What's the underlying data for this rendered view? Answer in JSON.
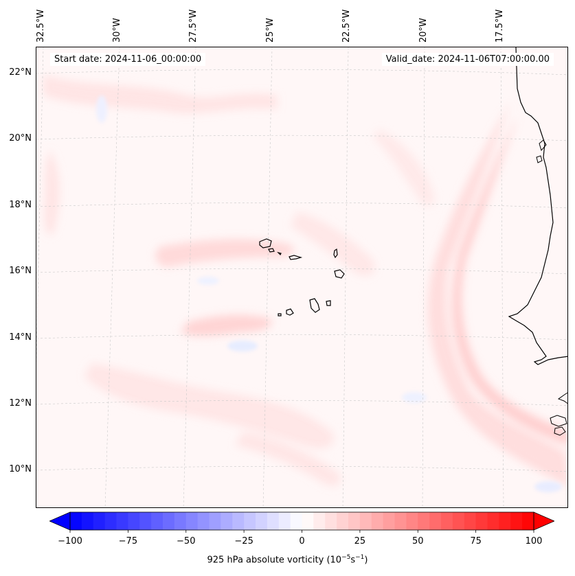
{
  "map": {
    "longitude_labels": [
      "32.5°W",
      "30°W",
      "27.5°W",
      "25°W",
      "22.5°W",
      "20°W",
      "17.5°W"
    ],
    "latitude_labels": [
      "22°N",
      "20°N",
      "18°N",
      "16°N",
      "14°N",
      "12°N",
      "10°N"
    ],
    "start_date": "Start date: 2024-11-06_00:00:00",
    "valid_date": "Valid_date: 2024-11-06T07:00:00.00",
    "background_color": "#fff7f7",
    "land_outline_color": "#000000"
  },
  "colorbar": {
    "ticks": [
      "−100",
      "−75",
      "−50",
      "−25",
      "0",
      "25",
      "50",
      "75",
      "100"
    ],
    "min": -100,
    "max": 100,
    "step": 5,
    "negative_color": "#0000ff",
    "positive_color": "#ff0000",
    "title_prefix": "925 hPa absolute vorticity (10",
    "title_exp1": "−5",
    "title_mid": "s",
    "title_exp2": "−1",
    "title_suffix": ")"
  }
}
